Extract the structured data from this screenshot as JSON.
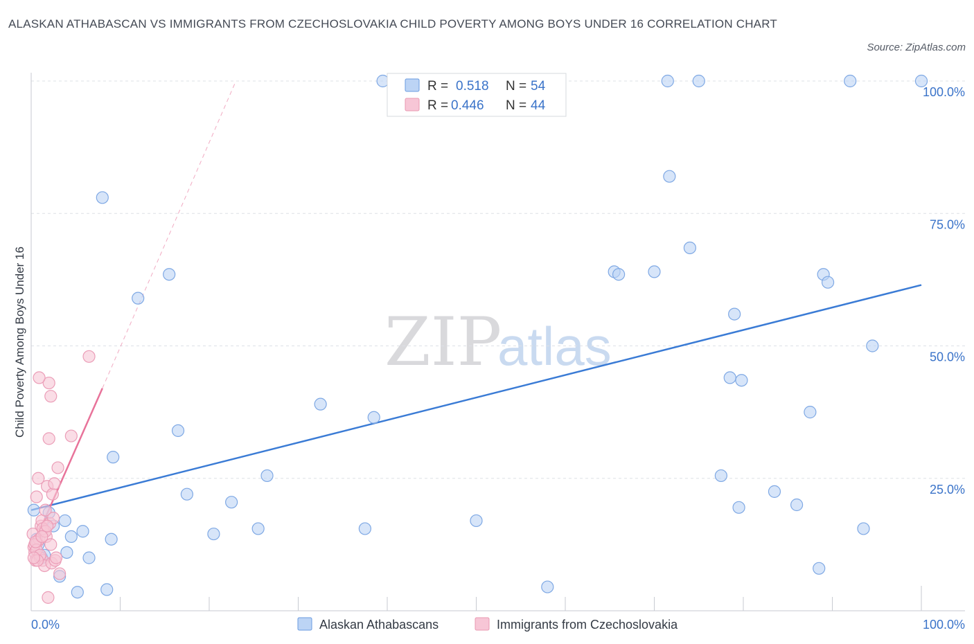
{
  "title": "ALASKAN ATHABASCAN VS IMMIGRANTS FROM CZECHOSLOVAKIA CHILD POVERTY AMONG BOYS UNDER 16 CORRELATION CHART",
  "source": "Source: ZipAtlas.com",
  "watermark": {
    "zip": "ZIP",
    "atlas": "atlas"
  },
  "colors": {
    "blue": "#3a7bd5",
    "blue_fill": "#bcd4f5",
    "pink": "#e8739a",
    "pink_fill": "#f7c6d6",
    "axis_text": "#3a73c9",
    "grid": "#dde0e6"
  },
  "legend_top": [
    {
      "r_label": "R =",
      "r_value": "0.518",
      "n_label": "N =",
      "n_value": "54"
    },
    {
      "r_label": "R =",
      "r_value": "0.446",
      "n_label": "N =",
      "n_value": "44"
    }
  ],
  "chart_data": {
    "type": "scatter",
    "title": "ALASKAN ATHABASCAN VS IMMIGRANTS FROM CZECHOSLOVAKIA CHILD POVERTY AMONG BOYS UNDER 16 CORRELATION CHART",
    "xlabel": "",
    "ylabel": "Child Poverty Among Boys Under 16",
    "xlim": [
      0,
      100
    ],
    "ylim": [
      0,
      100
    ],
    "x_tick_labels": [
      "0.0%",
      "100.0%"
    ],
    "y_tick_labels": [
      "100.0%",
      "75.0%",
      "50.0%",
      "25.0%"
    ],
    "y_ticks": [
      100,
      75,
      50,
      25
    ],
    "legend_position": "bottom",
    "series": [
      {
        "name": "Alaskan Athabascans",
        "color": "#3a7bd5",
        "trend": {
          "x0": 0,
          "y0": 19,
          "x1": 100,
          "y1": 61.5,
          "dashed_to": null
        },
        "points": [
          [
            0.3,
            19.0
          ],
          [
            0.6,
            13.5
          ],
          [
            0.8,
            12.5
          ],
          [
            1.2,
            10.0
          ],
          [
            1.5,
            10.5
          ],
          [
            2.0,
            18.5
          ],
          [
            2.5,
            16.0
          ],
          [
            3.2,
            6.5
          ],
          [
            3.8,
            17.0
          ],
          [
            4.0,
            11.0
          ],
          [
            4.5,
            14.0
          ],
          [
            5.2,
            3.5
          ],
          [
            5.8,
            15.0
          ],
          [
            6.5,
            10.0
          ],
          [
            8.0,
            78.0
          ],
          [
            8.5,
            4.0
          ],
          [
            9.0,
            13.5
          ],
          [
            9.2,
            29.0
          ],
          [
            12.0,
            59.0
          ],
          [
            15.5,
            63.5
          ],
          [
            16.5,
            34.0
          ],
          [
            17.5,
            22.0
          ],
          [
            20.5,
            14.5
          ],
          [
            22.5,
            20.5
          ],
          [
            25.5,
            15.5
          ],
          [
            26.5,
            25.5
          ],
          [
            32.5,
            39.0
          ],
          [
            37.5,
            15.5
          ],
          [
            38.5,
            36.5
          ],
          [
            39.5,
            100.0
          ],
          [
            50.0,
            17.0
          ],
          [
            58.0,
            4.5
          ],
          [
            65.5,
            64.0
          ],
          [
            66.0,
            63.5
          ],
          [
            70.0,
            64.0
          ],
          [
            71.5,
            100.0
          ],
          [
            71.7,
            82.0
          ],
          [
            74.0,
            68.5
          ],
          [
            75.0,
            100.0
          ],
          [
            77.5,
            25.5
          ],
          [
            78.5,
            44.0
          ],
          [
            79.0,
            56.0
          ],
          [
            79.5,
            19.5
          ],
          [
            79.8,
            43.5
          ],
          [
            83.5,
            22.5
          ],
          [
            86.0,
            20.0
          ],
          [
            87.5,
            37.5
          ],
          [
            88.5,
            8.0
          ],
          [
            89.0,
            63.5
          ],
          [
            89.5,
            62.0
          ],
          [
            92.0,
            100.0
          ],
          [
            93.5,
            15.5
          ],
          [
            94.5,
            50.0
          ],
          [
            100.0,
            100.0
          ]
        ]
      },
      {
        "name": "Immigrants from Czechoslovakia",
        "color": "#e8739a",
        "trend": {
          "x0": 0,
          "y0": 11.5,
          "x1": 8.0,
          "y1": 42,
          "dashed_to": {
            "x": 23,
            "y": 100
          }
        },
        "points": [
          [
            0.2,
            14.5
          ],
          [
            0.3,
            12.0
          ],
          [
            0.4,
            11.0
          ],
          [
            0.5,
            9.5
          ],
          [
            0.6,
            21.5
          ],
          [
            0.7,
            13.0
          ],
          [
            0.8,
            25.0
          ],
          [
            0.9,
            13.5
          ],
          [
            1.0,
            10.0
          ],
          [
            1.1,
            16.0
          ],
          [
            1.2,
            17.0
          ],
          [
            1.3,
            9.5
          ],
          [
            1.4,
            15.0
          ],
          [
            1.5,
            8.5
          ],
          [
            1.6,
            19.0
          ],
          [
            1.7,
            14.0
          ],
          [
            1.8,
            23.5
          ],
          [
            1.9,
            2.5
          ],
          [
            2.0,
            43.0
          ],
          [
            2.1,
            16.5
          ],
          [
            2.2,
            40.5
          ],
          [
            2.3,
            9.0
          ],
          [
            2.4,
            22.0
          ],
          [
            2.5,
            17.5
          ],
          [
            2.6,
            24.0
          ],
          [
            2.7,
            9.5
          ],
          [
            2.8,
            10.0
          ],
          [
            3.0,
            27.0
          ],
          [
            3.2,
            7.0
          ],
          [
            4.5,
            33.0
          ],
          [
            6.5,
            48.0
          ],
          [
            0.9,
            44.0
          ],
          [
            2.0,
            32.5
          ],
          [
            1.3,
            15.5
          ],
          [
            0.4,
            12.5
          ],
          [
            0.6,
            11.5
          ],
          [
            1.0,
            10.5
          ],
          [
            1.6,
            15.0
          ],
          [
            0.7,
            9.5
          ],
          [
            2.2,
            12.5
          ],
          [
            0.5,
            13.0
          ],
          [
            1.8,
            16.0
          ],
          [
            0.3,
            10.0
          ],
          [
            1.2,
            14.0
          ]
        ]
      }
    ]
  }
}
